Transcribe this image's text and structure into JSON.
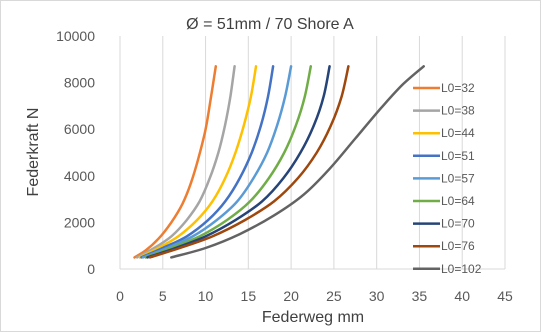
{
  "chart_data": {
    "type": "line",
    "title": "Ø = 51mm / 70 Shore A",
    "xlabel": "Federweg mm",
    "ylabel": "Federkraft N",
    "xlim": [
      0,
      45
    ],
    "ylim": [
      0,
      10000
    ],
    "xticks": [
      "0",
      "5",
      "10",
      "15",
      "20",
      "25",
      "30",
      "35",
      "40",
      "45"
    ],
    "yticks": [
      "0",
      "2000",
      "4000",
      "6000",
      "8000",
      "10000"
    ],
    "grid": "vertical",
    "legend_position": "right",
    "series": [
      {
        "name": "L0=32",
        "color": "#ED7D31",
        "x": [
          1.7,
          3,
          4.5,
          6,
          7.3,
          8.3,
          9.2,
          10,
          10.6,
          11.2
        ],
        "y": [
          500,
          800,
          1300,
          2000,
          2800,
          3700,
          4800,
          6000,
          7300,
          8700
        ]
      },
      {
        "name": "L0=38",
        "color": "#A5A5A5",
        "x": [
          2,
          4,
          6,
          7.8,
          9.3,
          10.5,
          11.5,
          12.3,
          12.9,
          13.4
        ],
        "y": [
          500,
          900,
          1400,
          2100,
          2900,
          3900,
          5000,
          6200,
          7400,
          8700
        ]
      },
      {
        "name": "L0=44",
        "color": "#FFC000",
        "x": [
          2.3,
          4.5,
          6.8,
          9,
          10.8,
          12.3,
          13.5,
          14.5,
          15.3,
          15.9
        ],
        "y": [
          500,
          900,
          1400,
          2100,
          2900,
          3900,
          5000,
          6200,
          7400,
          8700
        ]
      },
      {
        "name": "L0=51",
        "color": "#4472C4",
        "x": [
          2.5,
          5,
          7.8,
          10.3,
          12.3,
          14,
          15.4,
          16.5,
          17.3,
          17.9
        ],
        "y": [
          500,
          900,
          1400,
          2100,
          2900,
          3900,
          5000,
          6200,
          7400,
          8700
        ]
      },
      {
        "name": "L0=57",
        "color": "#5B9BD5",
        "x": [
          2.7,
          5.5,
          8.5,
          11.3,
          13.7,
          15.6,
          17.2,
          18.4,
          19.3,
          20
        ],
        "y": [
          500,
          900,
          1400,
          2100,
          2900,
          3900,
          5000,
          6200,
          7400,
          8700
        ]
      },
      {
        "name": "L0=64",
        "color": "#70AD47",
        "x": [
          3,
          6,
          9.3,
          12.5,
          15.2,
          17.4,
          19.2,
          20.6,
          21.6,
          22.3
        ],
        "y": [
          500,
          900,
          1400,
          2100,
          2900,
          3900,
          5000,
          6200,
          7400,
          8700
        ]
      },
      {
        "name": "L0=70",
        "color": "#264478",
        "x": [
          3.2,
          6.5,
          10,
          13.5,
          16.6,
          19.1,
          21.1,
          22.7,
          23.8,
          24.5
        ],
        "y": [
          500,
          900,
          1400,
          2100,
          2900,
          3900,
          5000,
          6200,
          7400,
          8700
        ]
      },
      {
        "name": "L0=76",
        "color": "#9E480E",
        "x": [
          3.5,
          7,
          10.8,
          14.6,
          18,
          20.8,
          23,
          24.7,
          25.9,
          26.7
        ],
        "y": [
          500,
          900,
          1400,
          2100,
          2900,
          3900,
          5000,
          6200,
          7400,
          8700
        ]
      },
      {
        "name": "L0=102",
        "color": "#636363",
        "x": [
          6,
          10,
          14,
          18,
          21.5,
          24.5,
          27.5,
          30.5,
          33,
          35.5
        ],
        "y": [
          500,
          900,
          1500,
          2300,
          3200,
          4300,
          5600,
          6900,
          7900,
          8700
        ]
      }
    ]
  }
}
